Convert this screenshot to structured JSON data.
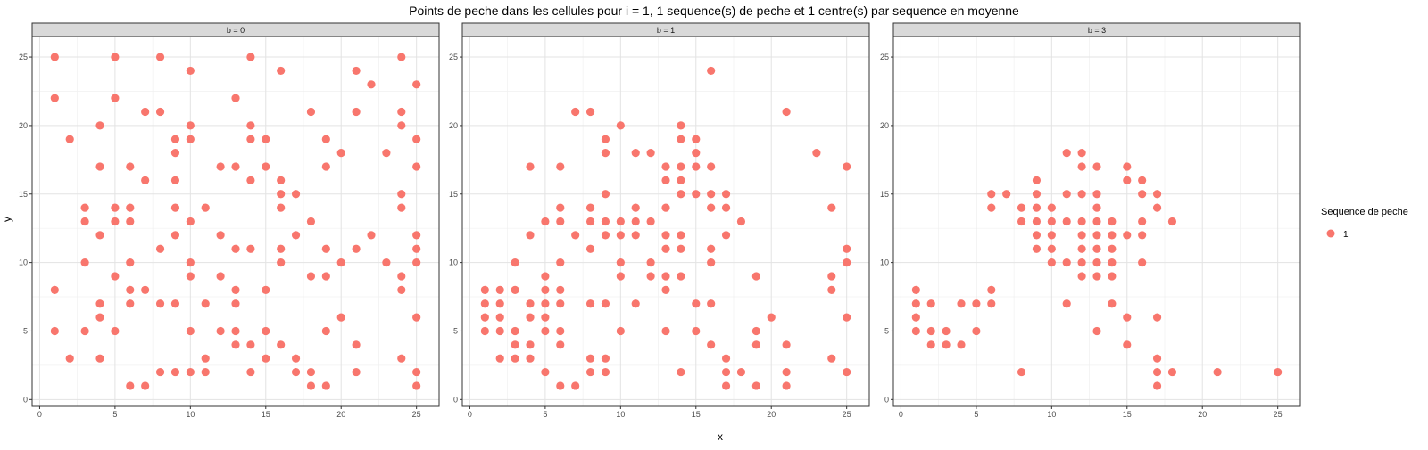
{
  "chart_data": {
    "type": "scatter",
    "title": "Points de peche dans les cellules pour i = 1, 1 sequence(s) de peche et 1 centre(s) par sequence en moyenne",
    "xlabel": "x",
    "ylabel": "y",
    "xlim": [
      -0.5,
      26.5
    ],
    "ylim": [
      -0.5,
      26.5
    ],
    "xticks": [
      0,
      5,
      10,
      15,
      20,
      25
    ],
    "yticks": [
      0,
      5,
      10,
      15,
      20,
      25
    ],
    "grid": true,
    "point_color": "#f8766d",
    "legend": {
      "title": "Sequence de peche",
      "position": "right",
      "items": [
        {
          "label": "1",
          "color": "#f8766d"
        }
      ]
    },
    "panels": [
      {
        "strip": "b = 0",
        "points": [
          [
            1,
            25
          ],
          [
            1,
            22
          ],
          [
            1,
            8
          ],
          [
            1,
            5
          ],
          [
            2,
            19
          ],
          [
            2,
            3
          ],
          [
            3,
            14
          ],
          [
            3,
            13
          ],
          [
            3,
            10
          ],
          [
            3,
            5
          ],
          [
            4,
            20
          ],
          [
            4,
            17
          ],
          [
            4,
            12
          ],
          [
            4,
            7
          ],
          [
            4,
            6
          ],
          [
            4,
            3
          ],
          [
            5,
            25
          ],
          [
            5,
            22
          ],
          [
            5,
            14
          ],
          [
            5,
            13
          ],
          [
            5,
            9
          ],
          [
            5,
            5
          ],
          [
            6,
            17
          ],
          [
            6,
            14
          ],
          [
            6,
            13
          ],
          [
            6,
            10
          ],
          [
            6,
            8
          ],
          [
            6,
            7
          ],
          [
            6,
            1
          ],
          [
            7,
            21
          ],
          [
            7,
            16
          ],
          [
            7,
            8
          ],
          [
            7,
            1
          ],
          [
            8,
            25
          ],
          [
            8,
            21
          ],
          [
            8,
            11
          ],
          [
            8,
            7
          ],
          [
            8,
            2
          ],
          [
            9,
            19
          ],
          [
            9,
            18
          ],
          [
            9,
            16
          ],
          [
            9,
            14
          ],
          [
            9,
            12
          ],
          [
            9,
            7
          ],
          [
            9,
            2
          ],
          [
            10,
            24
          ],
          [
            10,
            20
          ],
          [
            10,
            19
          ],
          [
            10,
            13
          ],
          [
            10,
            10
          ],
          [
            10,
            9
          ],
          [
            10,
            5
          ],
          [
            10,
            2
          ],
          [
            11,
            14
          ],
          [
            11,
            7
          ],
          [
            11,
            3
          ],
          [
            11,
            2
          ],
          [
            12,
            17
          ],
          [
            12,
            12
          ],
          [
            12,
            9
          ],
          [
            12,
            5
          ],
          [
            13,
            22
          ],
          [
            13,
            17
          ],
          [
            13,
            11
          ],
          [
            13,
            8
          ],
          [
            13,
            7
          ],
          [
            13,
            5
          ],
          [
            13,
            4
          ],
          [
            14,
            25
          ],
          [
            14,
            20
          ],
          [
            14,
            19
          ],
          [
            14,
            16
          ],
          [
            14,
            11
          ],
          [
            14,
            4
          ],
          [
            14,
            2
          ],
          [
            15,
            19
          ],
          [
            15,
            17
          ],
          [
            15,
            8
          ],
          [
            15,
            5
          ],
          [
            15,
            3
          ],
          [
            16,
            24
          ],
          [
            16,
            16
          ],
          [
            16,
            15
          ],
          [
            16,
            14
          ],
          [
            16,
            11
          ],
          [
            16,
            10
          ],
          [
            16,
            4
          ],
          [
            17,
            15
          ],
          [
            17,
            12
          ],
          [
            17,
            3
          ],
          [
            17,
            2
          ],
          [
            18,
            21
          ],
          [
            18,
            13
          ],
          [
            18,
            9
          ],
          [
            18,
            2
          ],
          [
            18,
            1
          ],
          [
            19,
            19
          ],
          [
            19,
            17
          ],
          [
            19,
            11
          ],
          [
            19,
            9
          ],
          [
            19,
            5
          ],
          [
            19,
            1
          ],
          [
            20,
            18
          ],
          [
            20,
            10
          ],
          [
            20,
            6
          ],
          [
            21,
            24
          ],
          [
            21,
            21
          ],
          [
            21,
            11
          ],
          [
            21,
            4
          ],
          [
            21,
            2
          ],
          [
            22,
            23
          ],
          [
            22,
            12
          ],
          [
            23,
            18
          ],
          [
            23,
            10
          ],
          [
            24,
            25
          ],
          [
            24,
            21
          ],
          [
            24,
            20
          ],
          [
            24,
            15
          ],
          [
            24,
            14
          ],
          [
            24,
            9
          ],
          [
            24,
            8
          ],
          [
            24,
            3
          ],
          [
            25,
            23
          ],
          [
            25,
            19
          ],
          [
            25,
            17
          ],
          [
            25,
            12
          ],
          [
            25,
            11
          ],
          [
            25,
            10
          ],
          [
            25,
            6
          ],
          [
            25,
            2
          ],
          [
            25,
            1
          ]
        ]
      },
      {
        "strip": "b = 1",
        "points": [
          [
            1,
            8
          ],
          [
            1,
            7
          ],
          [
            1,
            6
          ],
          [
            1,
            5
          ],
          [
            2,
            8
          ],
          [
            2,
            7
          ],
          [
            2,
            6
          ],
          [
            2,
            5
          ],
          [
            2,
            3
          ],
          [
            3,
            10
          ],
          [
            3,
            8
          ],
          [
            3,
            5
          ],
          [
            3,
            4
          ],
          [
            3,
            3
          ],
          [
            4,
            17
          ],
          [
            4,
            12
          ],
          [
            4,
            7
          ],
          [
            4,
            6
          ],
          [
            4,
            4
          ],
          [
            4,
            3
          ],
          [
            5,
            13
          ],
          [
            5,
            9
          ],
          [
            5,
            8
          ],
          [
            5,
            7
          ],
          [
            5,
            6
          ],
          [
            5,
            5
          ],
          [
            5,
            2
          ],
          [
            6,
            17
          ],
          [
            6,
            14
          ],
          [
            6,
            13
          ],
          [
            6,
            10
          ],
          [
            6,
            8
          ],
          [
            6,
            7
          ],
          [
            6,
            5
          ],
          [
            6,
            4
          ],
          [
            6,
            1
          ],
          [
            7,
            21
          ],
          [
            7,
            12
          ],
          [
            7,
            1
          ],
          [
            8,
            21
          ],
          [
            8,
            14
          ],
          [
            8,
            13
          ],
          [
            8,
            11
          ],
          [
            8,
            7
          ],
          [
            8,
            3
          ],
          [
            8,
            2
          ],
          [
            9,
            19
          ],
          [
            9,
            18
          ],
          [
            9,
            15
          ],
          [
            9,
            13
          ],
          [
            9,
            12
          ],
          [
            9,
            7
          ],
          [
            9,
            3
          ],
          [
            9,
            2
          ],
          [
            10,
            20
          ],
          [
            10,
            13
          ],
          [
            10,
            12
          ],
          [
            10,
            10
          ],
          [
            10,
            9
          ],
          [
            10,
            5
          ],
          [
            11,
            18
          ],
          [
            11,
            14
          ],
          [
            11,
            13
          ],
          [
            11,
            12
          ],
          [
            11,
            7
          ],
          [
            12,
            18
          ],
          [
            12,
            13
          ],
          [
            12,
            10
          ],
          [
            12,
            9
          ],
          [
            13,
            17
          ],
          [
            13,
            16
          ],
          [
            13,
            14
          ],
          [
            13,
            12
          ],
          [
            13,
            11
          ],
          [
            13,
            9
          ],
          [
            13,
            8
          ],
          [
            13,
            5
          ],
          [
            14,
            20
          ],
          [
            14,
            19
          ],
          [
            14,
            17
          ],
          [
            14,
            16
          ],
          [
            14,
            15
          ],
          [
            14,
            12
          ],
          [
            14,
            11
          ],
          [
            14,
            9
          ],
          [
            14,
            2
          ],
          [
            15,
            19
          ],
          [
            15,
            18
          ],
          [
            15,
            17
          ],
          [
            15,
            15
          ],
          [
            15,
            7
          ],
          [
            15,
            5
          ],
          [
            16,
            24
          ],
          [
            16,
            17
          ],
          [
            16,
            15
          ],
          [
            16,
            14
          ],
          [
            16,
            11
          ],
          [
            16,
            10
          ],
          [
            16,
            7
          ],
          [
            16,
            4
          ],
          [
            17,
            15
          ],
          [
            17,
            14
          ],
          [
            17,
            12
          ],
          [
            17,
            3
          ],
          [
            17,
            2
          ],
          [
            17,
            1
          ],
          [
            18,
            13
          ],
          [
            18,
            2
          ],
          [
            19,
            9
          ],
          [
            19,
            5
          ],
          [
            19,
            4
          ],
          [
            19,
            1
          ],
          [
            20,
            6
          ],
          [
            21,
            21
          ],
          [
            21,
            4
          ],
          [
            21,
            2
          ],
          [
            21,
            1
          ],
          [
            23,
            18
          ],
          [
            24,
            14
          ],
          [
            24,
            9
          ],
          [
            24,
            8
          ],
          [
            24,
            3
          ],
          [
            25,
            17
          ],
          [
            25,
            11
          ],
          [
            25,
            10
          ],
          [
            25,
            6
          ],
          [
            25,
            2
          ]
        ]
      },
      {
        "strip": "b = 3",
        "points": [
          [
            1,
            8
          ],
          [
            1,
            7
          ],
          [
            1,
            6
          ],
          [
            1,
            5
          ],
          [
            2,
            7
          ],
          [
            2,
            5
          ],
          [
            2,
            4
          ],
          [
            3,
            5
          ],
          [
            3,
            4
          ],
          [
            4,
            7
          ],
          [
            4,
            4
          ],
          [
            5,
            7
          ],
          [
            5,
            5
          ],
          [
            6,
            15
          ],
          [
            6,
            14
          ],
          [
            6,
            8
          ],
          [
            6,
            7
          ],
          [
            7,
            15
          ],
          [
            8,
            14
          ],
          [
            8,
            13
          ],
          [
            8,
            2
          ],
          [
            9,
            16
          ],
          [
            9,
            15
          ],
          [
            9,
            14
          ],
          [
            9,
            13
          ],
          [
            9,
            12
          ],
          [
            9,
            11
          ],
          [
            10,
            14
          ],
          [
            10,
            13
          ],
          [
            10,
            12
          ],
          [
            10,
            11
          ],
          [
            10,
            10
          ],
          [
            11,
            18
          ],
          [
            11,
            15
          ],
          [
            11,
            13
          ],
          [
            11,
            10
          ],
          [
            11,
            7
          ],
          [
            12,
            18
          ],
          [
            12,
            17
          ],
          [
            12,
            15
          ],
          [
            12,
            13
          ],
          [
            12,
            12
          ],
          [
            12,
            11
          ],
          [
            12,
            10
          ],
          [
            12,
            9
          ],
          [
            13,
            17
          ],
          [
            13,
            15
          ],
          [
            13,
            14
          ],
          [
            13,
            13
          ],
          [
            13,
            12
          ],
          [
            13,
            11
          ],
          [
            13,
            10
          ],
          [
            13,
            9
          ],
          [
            13,
            5
          ],
          [
            14,
            13
          ],
          [
            14,
            12
          ],
          [
            14,
            11
          ],
          [
            14,
            10
          ],
          [
            14,
            9
          ],
          [
            14,
            7
          ],
          [
            15,
            17
          ],
          [
            15,
            16
          ],
          [
            15,
            12
          ],
          [
            15,
            6
          ],
          [
            15,
            4
          ],
          [
            16,
            16
          ],
          [
            16,
            15
          ],
          [
            16,
            13
          ],
          [
            16,
            12
          ],
          [
            16,
            10
          ],
          [
            17,
            15
          ],
          [
            17,
            14
          ],
          [
            17,
            6
          ],
          [
            17,
            3
          ],
          [
            17,
            2
          ],
          [
            17,
            1
          ],
          [
            18,
            13
          ],
          [
            18,
            2
          ],
          [
            21,
            2
          ],
          [
            25,
            2
          ]
        ]
      }
    ]
  }
}
